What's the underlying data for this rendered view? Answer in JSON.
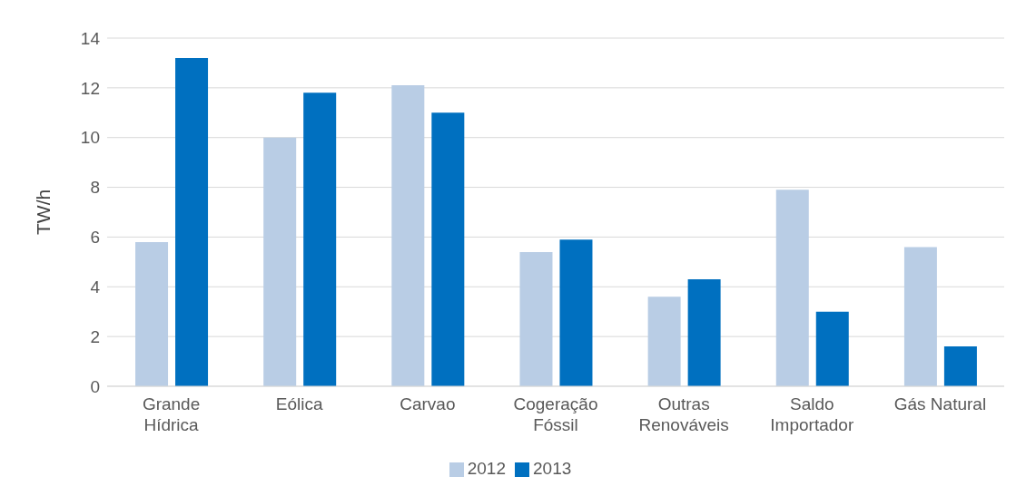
{
  "chart_data": {
    "type": "bar",
    "ylabel": "TW/h",
    "categories": [
      "Grande Hídrica",
      "Eólica",
      "Carvao",
      "Cogeração Fóssil",
      "Outras Renováveis",
      "Saldo Importador",
      "Gás Natural"
    ],
    "series": [
      {
        "name": "2012",
        "color": "#b9cde5",
        "values": [
          5.8,
          10.0,
          12.1,
          5.4,
          3.6,
          7.9,
          5.6
        ]
      },
      {
        "name": "2013",
        "color": "#0070c0",
        "values": [
          13.2,
          11.8,
          11.0,
          5.9,
          4.3,
          3.0,
          1.6
        ]
      }
    ],
    "ylim": [
      0,
      14
    ],
    "yticks": [
      0,
      2,
      4,
      6,
      8,
      10,
      12,
      14
    ],
    "grid": "y",
    "legend": "bottom"
  }
}
